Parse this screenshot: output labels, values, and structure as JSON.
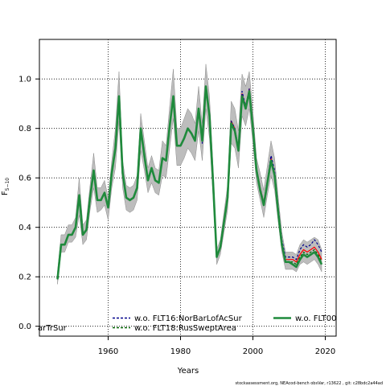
{
  "chart_data": {
    "type": "line",
    "xlabel": "Years",
    "ylabel": "F",
    "ylabel_sub": "5−10",
    "xlim": [
      1941,
      2023
    ],
    "ylim": [
      -0.04,
      1.16
    ],
    "xticks": [
      1960,
      1980,
      2000,
      2020
    ],
    "yticks": [
      0.0,
      0.2,
      0.4,
      0.6,
      0.8,
      1.0
    ],
    "xtick_labels": [
      "1960",
      "1980",
      "2000",
      "2020"
    ],
    "ytick_labels": [
      "0.0",
      "0.2",
      "0.4",
      "0.6",
      "0.8",
      "1.0"
    ],
    "grid": true,
    "footer": "stockassessment.org, NEAcod-bench  obsVar, r13622 , git: c28bdc2a44ad",
    "legend": [
      {
        "label": "arTrSur",
        "color": "#ff0000",
        "dash": "solid"
      },
      {
        "label": "w.o. FLT16:NorBarLofAcSur",
        "color": "#00008b",
        "dash": "dashed"
      },
      {
        "label": "w.o. FLT18:RusSweptArea",
        "color": "#006400",
        "dash": "dashed"
      },
      {
        "label": "w.o. FLT00",
        "color": "#1f8a3c",
        "dash": "solid"
      }
    ],
    "x": [
      1946,
      1947,
      1948,
      1949,
      1950,
      1951,
      1952,
      1953,
      1954,
      1955,
      1956,
      1957,
      1958,
      1959,
      1960,
      1961,
      1962,
      1963,
      1964,
      1965,
      1966,
      1967,
      1968,
      1969,
      1970,
      1971,
      1972,
      1973,
      1974,
      1975,
      1976,
      1977,
      1978,
      1979,
      1980,
      1981,
      1982,
      1983,
      1984,
      1985,
      1986,
      1987,
      1988,
      1989,
      1990,
      1991,
      1992,
      1993,
      1994,
      1995,
      1996,
      1997,
      1998,
      1999,
      2000,
      2001,
      2002,
      2003,
      2004,
      2005,
      2006,
      2007,
      2008,
      2009,
      2010,
      2011,
      2012,
      2013,
      2014,
      2015,
      2016,
      2017,
      2018,
      2019
    ],
    "band_lower": [
      0.17,
      0.3,
      0.3,
      0.34,
      0.34,
      0.36,
      0.45,
      0.33,
      0.35,
      0.47,
      0.56,
      0.46,
      0.47,
      0.49,
      0.43,
      0.56,
      0.64,
      0.83,
      0.56,
      0.47,
      0.46,
      0.47,
      0.51,
      0.71,
      0.63,
      0.54,
      0.58,
      0.54,
      0.53,
      0.61,
      0.6,
      0.72,
      0.84,
      0.65,
      0.65,
      0.68,
      0.72,
      0.7,
      0.67,
      0.79,
      0.67,
      0.88,
      0.76,
      0.52,
      0.25,
      0.29,
      0.38,
      0.47,
      0.74,
      0.72,
      0.64,
      0.85,
      0.81,
      0.88,
      0.74,
      0.58,
      0.51,
      0.44,
      0.53,
      0.61,
      0.55,
      0.42,
      0.3,
      0.23,
      0.23,
      0.23,
      0.22,
      0.25,
      0.26,
      0.25,
      0.26,
      0.27,
      0.25,
      0.22
    ],
    "band_upper": [
      0.22,
      0.37,
      0.37,
      0.41,
      0.41,
      0.44,
      0.6,
      0.41,
      0.43,
      0.57,
      0.7,
      0.56,
      0.56,
      0.59,
      0.52,
      0.67,
      0.8,
      1.03,
      0.67,
      0.57,
      0.56,
      0.57,
      0.61,
      0.86,
      0.75,
      0.64,
      0.69,
      0.64,
      0.63,
      0.75,
      0.73,
      0.89,
      1.04,
      0.8,
      0.8,
      0.84,
      0.88,
      0.86,
      0.82,
      0.97,
      0.82,
      1.06,
      0.93,
      0.64,
      0.31,
      0.35,
      0.46,
      0.57,
      0.91,
      0.88,
      0.79,
      1.02,
      0.97,
      1.03,
      0.87,
      0.68,
      0.62,
      0.55,
      0.65,
      0.75,
      0.68,
      0.52,
      0.38,
      0.3,
      0.3,
      0.3,
      0.29,
      0.33,
      0.35,
      0.34,
      0.35,
      0.36,
      0.35,
      0.31
    ],
    "series": [
      {
        "name": "arTrSur",
        "color": "#ff0000",
        "dash": "solid",
        "width": 1.2,
        "values": [
          0.19,
          0.33,
          0.33,
          0.37,
          0.37,
          0.4,
          0.53,
          0.37,
          0.39,
          0.52,
          0.63,
          0.51,
          0.51,
          0.54,
          0.48,
          0.62,
          0.72,
          0.93,
          0.62,
          0.52,
          0.51,
          0.52,
          0.56,
          0.79,
          0.69,
          0.59,
          0.64,
          0.59,
          0.58,
          0.68,
          0.67,
          0.81,
          0.93,
          0.73,
          0.73,
          0.76,
          0.8,
          0.78,
          0.75,
          0.88,
          0.75,
          0.97,
          0.85,
          0.58,
          0.28,
          0.32,
          0.42,
          0.52,
          0.83,
          0.8,
          0.72,
          0.94,
          0.89,
          0.96,
          0.81,
          0.64,
          0.56,
          0.5,
          0.59,
          0.68,
          0.62,
          0.47,
          0.34,
          0.27,
          0.27,
          0.27,
          0.26,
          0.29,
          0.31,
          0.3,
          0.31,
          0.32,
          0.3,
          0.27
        ]
      },
      {
        "name": "w.o. FLT16:NorBarLofAcSur",
        "color": "#00008b",
        "dash": "dashed",
        "width": 1.2,
        "values": [
          0.19,
          0.33,
          0.33,
          0.37,
          0.37,
          0.4,
          0.53,
          0.37,
          0.39,
          0.52,
          0.63,
          0.51,
          0.51,
          0.54,
          0.48,
          0.62,
          0.72,
          0.93,
          0.62,
          0.52,
          0.51,
          0.52,
          0.56,
          0.79,
          0.69,
          0.59,
          0.64,
          0.59,
          0.58,
          0.68,
          0.67,
          0.81,
          0.93,
          0.73,
          0.73,
          0.76,
          0.8,
          0.78,
          0.75,
          0.88,
          0.74,
          0.97,
          0.85,
          0.58,
          0.28,
          0.32,
          0.42,
          0.52,
          0.83,
          0.8,
          0.72,
          0.95,
          0.89,
          0.96,
          0.81,
          0.64,
          0.56,
          0.5,
          0.59,
          0.69,
          0.63,
          0.48,
          0.35,
          0.28,
          0.28,
          0.28,
          0.27,
          0.31,
          0.33,
          0.32,
          0.33,
          0.35,
          0.33,
          0.3
        ]
      },
      {
        "name": "w.o. FLT18:RusSweptArea",
        "color": "#006400",
        "dash": "dashed",
        "width": 1.2,
        "values": [
          0.19,
          0.33,
          0.33,
          0.37,
          0.37,
          0.4,
          0.53,
          0.37,
          0.39,
          0.52,
          0.63,
          0.51,
          0.51,
          0.54,
          0.48,
          0.62,
          0.72,
          0.93,
          0.62,
          0.52,
          0.51,
          0.52,
          0.56,
          0.79,
          0.69,
          0.59,
          0.64,
          0.59,
          0.58,
          0.68,
          0.67,
          0.81,
          0.93,
          0.73,
          0.73,
          0.76,
          0.8,
          0.78,
          0.75,
          0.88,
          0.75,
          0.97,
          0.85,
          0.58,
          0.28,
          0.32,
          0.42,
          0.52,
          0.82,
          0.79,
          0.71,
          0.93,
          0.88,
          0.95,
          0.8,
          0.63,
          0.55,
          0.49,
          0.58,
          0.67,
          0.61,
          0.46,
          0.33,
          0.26,
          0.26,
          0.26,
          0.25,
          0.28,
          0.3,
          0.29,
          0.3,
          0.31,
          0.29,
          0.26
        ]
      },
      {
        "name": "w.o. FLT00",
        "color": "#1f8a3c",
        "dash": "solid",
        "width": 2.6,
        "values": [
          0.19,
          0.33,
          0.33,
          0.37,
          0.37,
          0.4,
          0.53,
          0.37,
          0.39,
          0.52,
          0.63,
          0.51,
          0.51,
          0.54,
          0.48,
          0.62,
          0.72,
          0.93,
          0.62,
          0.52,
          0.51,
          0.52,
          0.56,
          0.8,
          0.69,
          0.59,
          0.64,
          0.59,
          0.58,
          0.68,
          0.67,
          0.81,
          0.93,
          0.73,
          0.73,
          0.76,
          0.8,
          0.78,
          0.75,
          0.88,
          0.75,
          0.97,
          0.85,
          0.58,
          0.28,
          0.32,
          0.42,
          0.52,
          0.82,
          0.79,
          0.71,
          0.93,
          0.88,
          0.95,
          0.8,
          0.63,
          0.55,
          0.49,
          0.58,
          0.67,
          0.61,
          0.46,
          0.33,
          0.26,
          0.26,
          0.25,
          0.24,
          0.27,
          0.29,
          0.28,
          0.29,
          0.3,
          0.28,
          0.25
        ]
      }
    ]
  }
}
